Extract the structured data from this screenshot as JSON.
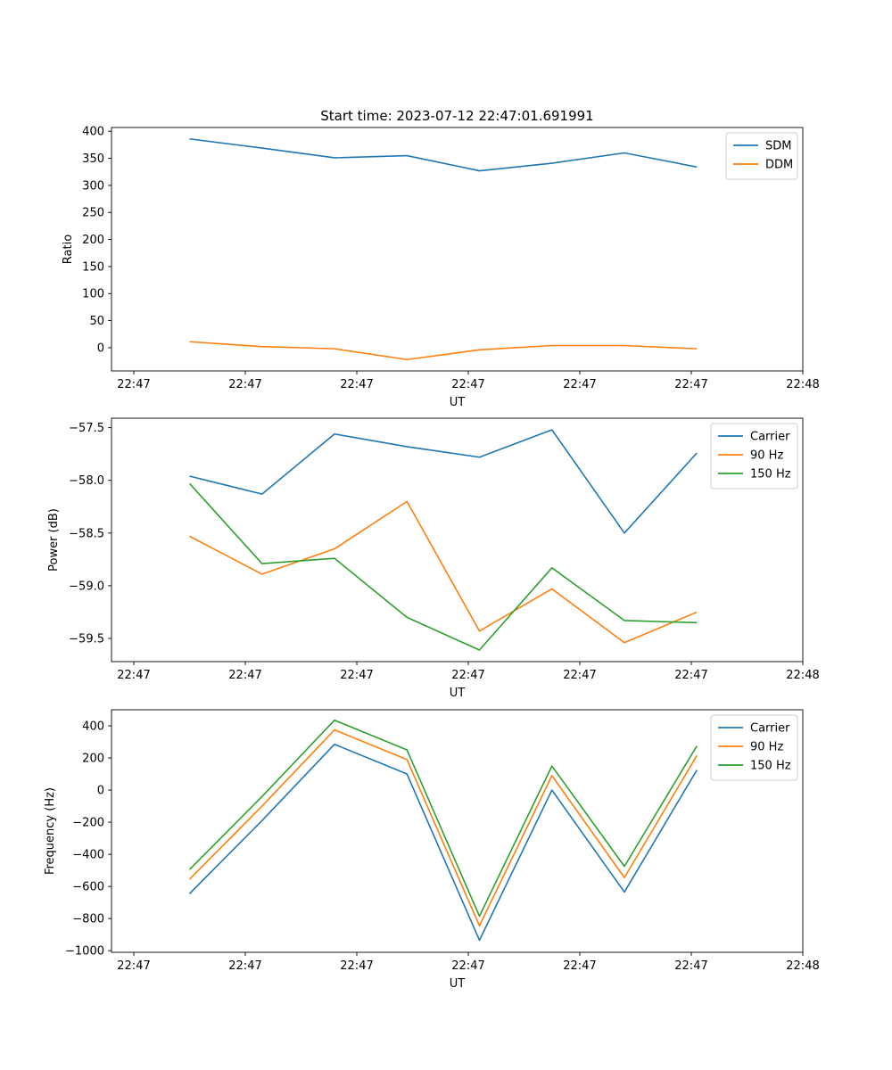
{
  "chart_data": [
    {
      "type": "line",
      "title": "Start time: 2023-07-12 22:47:01.691991",
      "xlabel": "UT",
      "ylabel": "Ratio",
      "x_tick_labels": [
        "22:47",
        "22:47",
        "22:47",
        "22:47",
        "22:47",
        "22:47",
        "22:48"
      ],
      "y_ticks": [
        0,
        50,
        100,
        150,
        200,
        250,
        300,
        350,
        400
      ],
      "y_tick_labels": [
        "0",
        "50",
        "100",
        "150",
        "200",
        "250",
        "300",
        "350",
        "400"
      ],
      "ylim": [
        -43,
        407
      ],
      "legend_position": "top-right",
      "x": [
        0.5,
        1.15,
        1.8,
        2.45,
        3.1,
        3.75,
        4.4,
        5.05
      ],
      "series": [
        {
          "name": "SDM",
          "color": "#1f77b4",
          "values": [
            386,
            369,
            351,
            355,
            327,
            341,
            360,
            334
          ]
        },
        {
          "name": "DDM",
          "color": "#ff7f0e",
          "values": [
            11,
            2,
            -2,
            -22,
            -4,
            4,
            4,
            -2
          ]
        }
      ]
    },
    {
      "type": "line",
      "title": "",
      "xlabel": "UT",
      "ylabel": "Power (dB)",
      "x_tick_labels": [
        "22:47",
        "22:47",
        "22:47",
        "22:47",
        "22:47",
        "22:47",
        "22:48"
      ],
      "y_ticks": [
        -59.5,
        -59.0,
        -58.5,
        -58.0,
        -57.5
      ],
      "y_tick_labels": [
        "−59.5",
        "−59.0",
        "−58.5",
        "−58.0",
        "−57.5"
      ],
      "ylim": [
        -59.72,
        -57.41
      ],
      "legend_position": "top-right",
      "x": [
        0.5,
        1.15,
        1.8,
        2.45,
        3.1,
        3.75,
        4.4,
        5.05
      ],
      "series": [
        {
          "name": "Carrier",
          "color": "#1f77b4",
          "values": [
            -57.96,
            -58.13,
            -57.56,
            -57.68,
            -57.78,
            -57.52,
            -58.5,
            -57.74
          ]
        },
        {
          "name": "90 Hz",
          "color": "#ff7f0e",
          "values": [
            -58.53,
            -58.89,
            -58.65,
            -58.2,
            -59.43,
            -59.03,
            -59.54,
            -59.25
          ]
        },
        {
          "name": "150 Hz",
          "color": "#2ca02c",
          "values": [
            -58.03,
            -58.79,
            -58.74,
            -59.3,
            -59.61,
            -58.83,
            -59.33,
            -59.35
          ]
        }
      ]
    },
    {
      "type": "line",
      "title": "",
      "xlabel": "UT",
      "ylabel": "Frequency (Hz)",
      "x_tick_labels": [
        "22:47",
        "22:47",
        "22:47",
        "22:47",
        "22:47",
        "22:47",
        "22:48"
      ],
      "y_ticks": [
        -1000,
        -800,
        -600,
        -400,
        -200,
        0,
        200,
        400
      ],
      "y_tick_labels": [
        "−1000",
        "−800",
        "−600",
        "−400",
        "−200",
        "0",
        "200",
        "400"
      ],
      "ylim": [
        -1010,
        500
      ],
      "legend_position": "top-right",
      "x": [
        0.5,
        1.15,
        1.8,
        2.45,
        3.1,
        3.75,
        4.4,
        5.05
      ],
      "series": [
        {
          "name": "Carrier",
          "color": "#1f77b4",
          "values": [
            -645,
            -190,
            285,
            100,
            -935,
            0,
            -635,
            125
          ]
        },
        {
          "name": "90 Hz",
          "color": "#ff7f0e",
          "values": [
            -555,
            -100,
            375,
            190,
            -845,
            90,
            -545,
            215
          ]
        },
        {
          "name": "150 Hz",
          "color": "#2ca02c",
          "values": [
            -495,
            -40,
            435,
            250,
            -785,
            150,
            -475,
            275
          ]
        }
      ]
    }
  ]
}
